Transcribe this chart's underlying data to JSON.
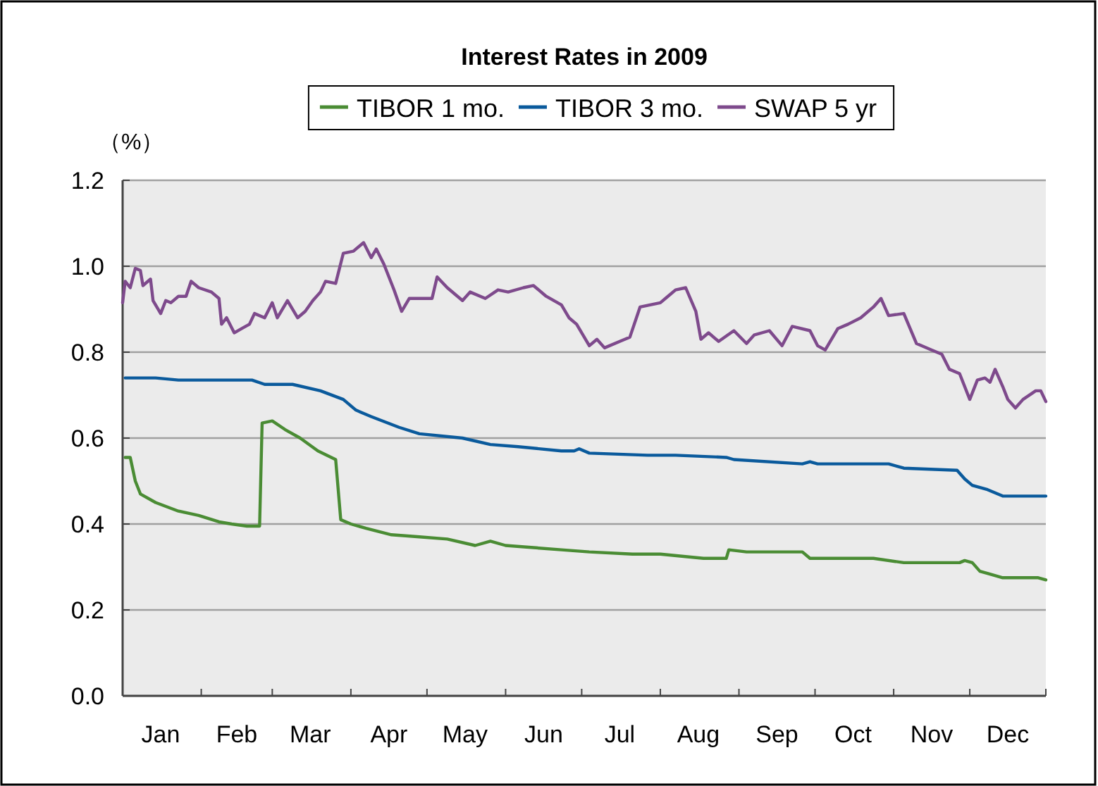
{
  "chart_data": {
    "type": "line",
    "title": "Interest Rates in 2009",
    "ylabel": "（%）",
    "xlim": [
      "2009-01-01",
      "2009-12-31"
    ],
    "ylim": [
      0,
      1.2
    ],
    "xticks": [
      {
        "value": "2009-01-01",
        "label": null
      },
      {
        "value": "2009-01-16",
        "label": "Jan"
      },
      {
        "value": "2009-02-01",
        "label": null
      },
      {
        "value": "2009-02-15",
        "label": "Feb"
      },
      {
        "value": "2009-03-01",
        "label": null
      },
      {
        "value": "2009-03-16",
        "label": "Mar"
      },
      {
        "value": "2009-04-01",
        "label": null
      },
      {
        "value": "2009-04-16",
        "label": "Apr"
      },
      {
        "value": "2009-05-01",
        "label": null
      },
      {
        "value": "2009-05-16",
        "label": "May"
      },
      {
        "value": "2009-06-01",
        "label": null
      },
      {
        "value": "2009-06-16",
        "label": "Jun"
      },
      {
        "value": "2009-07-01",
        "label": null
      },
      {
        "value": "2009-07-16",
        "label": "Jul"
      },
      {
        "value": "2009-08-01",
        "label": null
      },
      {
        "value": "2009-08-16",
        "label": "Aug"
      },
      {
        "value": "2009-09-01",
        "label": null
      },
      {
        "value": "2009-09-16",
        "label": "Sep"
      },
      {
        "value": "2009-10-01",
        "label": null
      },
      {
        "value": "2009-10-16",
        "label": "Oct"
      },
      {
        "value": "2009-11-01",
        "label": null
      },
      {
        "value": "2009-11-16",
        "label": "Nov"
      },
      {
        "value": "2009-12-01",
        "label": null
      },
      {
        "value": "2009-12-16",
        "label": "Dec"
      },
      {
        "value": "2009-12-31",
        "label": null
      }
    ],
    "yticks": [
      {
        "value": 0,
        "label": "0.0"
      },
      {
        "value": 0.2,
        "label": "0.2"
      },
      {
        "value": 0.4,
        "label": "0.4"
      },
      {
        "value": 0.6,
        "label": "0.6"
      },
      {
        "value": 0.8,
        "label": "0.8"
      },
      {
        "value": 1.0,
        "label": "1.0"
      },
      {
        "value": 1.2,
        "label": "1.2"
      }
    ],
    "grid": "y",
    "legend": "top",
    "marker": "none",
    "line_style": "solid",
    "series": [
      {
        "name": "TIBOR 1 mo.",
        "color": "#4a8c34",
        "x": [
          "2009-01-02",
          "2009-01-04",
          "2009-01-06",
          "2009-01-08",
          "2009-01-14",
          "2009-01-23",
          "2009-01-31",
          "2009-02-08",
          "2009-02-13",
          "2009-02-19",
          "2009-02-24",
          "2009-02-25",
          "2009-03-01",
          "2009-03-06",
          "2009-03-12",
          "2009-03-19",
          "2009-03-26",
          "2009-03-28",
          "2009-04-01",
          "2009-04-07",
          "2009-04-17",
          "2009-04-28",
          "2009-05-09",
          "2009-05-20",
          "2009-05-26",
          "2009-06-01",
          "2009-06-12",
          "2009-06-23",
          "2009-07-04",
          "2009-07-21",
          "2009-08-01",
          "2009-08-18",
          "2009-08-27",
          "2009-08-28",
          "2009-09-04",
          "2009-09-26",
          "2009-09-29",
          "2009-10-24",
          "2009-11-05",
          "2009-11-27",
          "2009-11-29",
          "2009-12-02",
          "2009-12-05",
          "2009-12-08",
          "2009-12-14",
          "2009-12-28",
          "2009-12-31"
        ],
        "values": [
          0.555,
          0.555,
          0.5,
          0.47,
          0.45,
          0.43,
          0.42,
          0.405,
          0.4,
          0.395,
          0.395,
          0.635,
          0.64,
          0.62,
          0.6,
          0.57,
          0.55,
          0.41,
          0.4,
          0.39,
          0.375,
          0.37,
          0.365,
          0.35,
          0.36,
          0.35,
          0.345,
          0.34,
          0.335,
          0.33,
          0.33,
          0.32,
          0.32,
          0.34,
          0.335,
          0.335,
          0.32,
          0.32,
          0.31,
          0.31,
          0.315,
          0.31,
          0.29,
          0.285,
          0.275,
          0.275,
          0.27
        ]
      },
      {
        "name": "TIBOR 3 mo.",
        "color": "#0a5a9c",
        "x": [
          "2009-01-02",
          "2009-01-14",
          "2009-01-23",
          "2009-02-21",
          "2009-02-26",
          "2009-03-09",
          "2009-03-20",
          "2009-03-29",
          "2009-04-03",
          "2009-04-09",
          "2009-04-20",
          "2009-04-28",
          "2009-05-15",
          "2009-05-26",
          "2009-06-06",
          "2009-06-23",
          "2009-06-28",
          "2009-06-30",
          "2009-07-04",
          "2009-07-27",
          "2009-08-07",
          "2009-08-27",
          "2009-08-30",
          "2009-09-26",
          "2009-09-29",
          "2009-10-02",
          "2009-10-30",
          "2009-11-05",
          "2009-11-26",
          "2009-11-29",
          "2009-12-02",
          "2009-12-08",
          "2009-12-14",
          "2009-12-31"
        ],
        "values": [
          0.74,
          0.74,
          0.735,
          0.735,
          0.725,
          0.725,
          0.71,
          0.69,
          0.665,
          0.65,
          0.625,
          0.61,
          0.6,
          0.585,
          0.58,
          0.57,
          0.57,
          0.575,
          0.565,
          0.56,
          0.56,
          0.555,
          0.55,
          0.54,
          0.545,
          0.54,
          0.54,
          0.53,
          0.525,
          0.505,
          0.49,
          0.48,
          0.465,
          0.465
        ]
      },
      {
        "name": "SWAP 5 yr",
        "color": "#7e4a8c",
        "x": [
          "2009-01-01",
          "2009-01-02",
          "2009-01-04",
          "2009-01-06",
          "2009-01-08",
          "2009-01-09",
          "2009-01-12",
          "2009-01-13",
          "2009-01-16",
          "2009-01-18",
          "2009-01-20",
          "2009-01-23",
          "2009-01-26",
          "2009-01-28",
          "2009-01-31",
          "2009-02-05",
          "2009-02-08",
          "2009-02-09",
          "2009-02-11",
          "2009-02-14",
          "2009-02-17",
          "2009-02-20",
          "2009-02-22",
          "2009-02-26",
          "2009-03-01",
          "2009-03-03",
          "2009-03-07",
          "2009-03-11",
          "2009-03-14",
          "2009-03-17",
          "2009-03-20",
          "2009-03-22",
          "2009-03-26",
          "2009-03-29",
          "2009-04-02",
          "2009-04-06",
          "2009-04-09",
          "2009-04-11",
          "2009-04-14",
          "2009-04-18",
          "2009-04-21",
          "2009-04-24",
          "2009-04-27",
          "2009-05-03",
          "2009-05-05",
          "2009-05-09",
          "2009-05-15",
          "2009-05-18",
          "2009-05-24",
          "2009-05-29",
          "2009-06-02",
          "2009-06-08",
          "2009-06-12",
          "2009-06-17",
          "2009-06-23",
          "2009-06-26",
          "2009-06-29",
          "2009-07-04",
          "2009-07-07",
          "2009-07-10",
          "2009-07-16",
          "2009-07-20",
          "2009-07-24",
          "2009-08-01",
          "2009-08-04",
          "2009-08-07",
          "2009-08-11",
          "2009-08-15",
          "2009-08-17",
          "2009-08-20",
          "2009-08-24",
          "2009-08-30",
          "2009-09-04",
          "2009-09-07",
          "2009-09-13",
          "2009-09-18",
          "2009-09-22",
          "2009-09-29",
          "2009-10-02",
          "2009-10-05",
          "2009-10-10",
          "2009-10-14",
          "2009-10-19",
          "2009-10-24",
          "2009-10-27",
          "2009-10-30",
          "2009-11-05",
          "2009-11-10",
          "2009-11-16",
          "2009-11-20",
          "2009-11-23",
          "2009-11-27",
          "2009-12-01",
          "2009-12-04",
          "2009-12-07",
          "2009-12-09",
          "2009-12-11",
          "2009-12-14",
          "2009-12-16",
          "2009-12-19",
          "2009-12-22",
          "2009-12-27",
          "2009-12-29",
          "2009-12-31"
        ],
        "values": [
          0.915,
          0.965,
          0.95,
          0.995,
          0.99,
          0.955,
          0.97,
          0.92,
          0.89,
          0.92,
          0.915,
          0.93,
          0.93,
          0.965,
          0.95,
          0.94,
          0.925,
          0.865,
          0.88,
          0.845,
          0.855,
          0.865,
          0.89,
          0.88,
          0.915,
          0.88,
          0.92,
          0.88,
          0.895,
          0.92,
          0.94,
          0.965,
          0.96,
          1.03,
          1.035,
          1.055,
          1.02,
          1.04,
          1.005,
          0.945,
          0.895,
          0.925,
          0.925,
          0.925,
          0.975,
          0.95,
          0.92,
          0.94,
          0.925,
          0.945,
          0.94,
          0.95,
          0.955,
          0.93,
          0.91,
          0.88,
          0.865,
          0.815,
          0.83,
          0.81,
          0.825,
          0.835,
          0.905,
          0.915,
          0.93,
          0.945,
          0.95,
          0.895,
          0.83,
          0.845,
          0.825,
          0.85,
          0.82,
          0.84,
          0.85,
          0.815,
          0.86,
          0.85,
          0.815,
          0.805,
          0.855,
          0.865,
          0.88,
          0.905,
          0.925,
          0.885,
          0.89,
          0.82,
          0.805,
          0.795,
          0.76,
          0.75,
          0.69,
          0.735,
          0.74,
          0.73,
          0.76,
          0.72,
          0.69,
          0.67,
          0.69,
          0.71,
          0.71,
          0.685
        ]
      }
    ]
  }
}
